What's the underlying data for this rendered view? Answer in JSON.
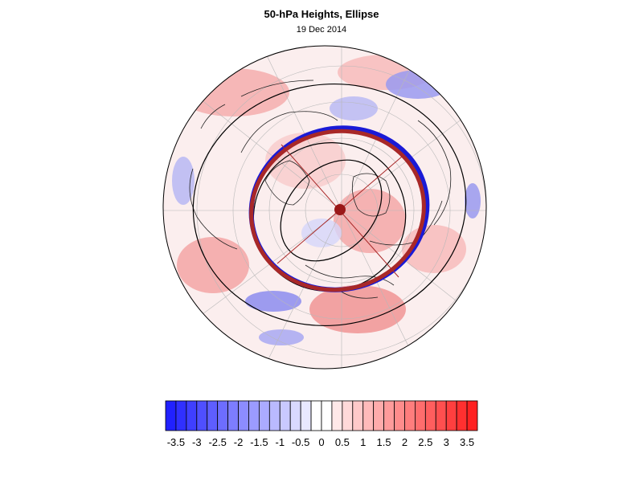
{
  "title": "50-hPa Heights, Ellipse",
  "subtitle": "19 Dec 2014",
  "colors": {
    "negative_extreme": "#1a1aff",
    "positive_extreme": "#ff1a1a",
    "ellipse_outer": "#1a1ad6",
    "ellipse_inner": "#a82828",
    "center_marker": "#9a1818",
    "contour": "#000000"
  },
  "colorbar": {
    "min": -3.75,
    "max": 3.75,
    "step": 0.25,
    "tick_labels": [
      "-3.5",
      "-3",
      "-2.5",
      "-2",
      "-1.5",
      "-1",
      "-0.5",
      "0",
      "0.5",
      "1",
      "1.5",
      "2",
      "2.5",
      "3",
      "3.5"
    ],
    "tick_values": [
      -3.5,
      -3,
      -2.5,
      -2,
      -1.5,
      -1,
      -0.5,
      0,
      0.5,
      1,
      1.5,
      2,
      2.5,
      3,
      3.5
    ]
  },
  "map": {
    "projection": "polar stereographic (north pole)",
    "graticule": true,
    "features": [
      "ellipse",
      "center-marker",
      "ellipse-axes",
      "height-contours",
      "coastlines"
    ]
  }
}
